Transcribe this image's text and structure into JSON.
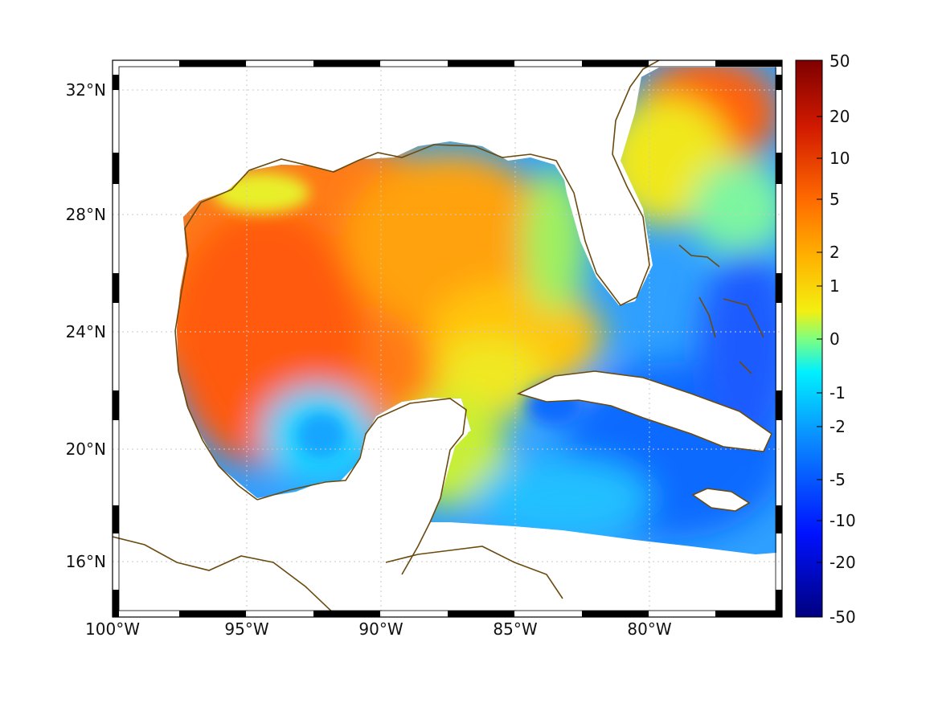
{
  "map": {
    "lon_labels": [
      "100°W",
      "95°W",
      "90°W",
      "85°W",
      "80°W"
    ],
    "lat_labels": [
      "32°N",
      "28°N",
      "24°N",
      "20°N",
      "16°N"
    ],
    "coast_color": "#6b4a0f",
    "grid_style": "dotted",
    "frame": "black-white-checker"
  },
  "colorbar": {
    "labels": [
      "50",
      "20",
      "10",
      "5",
      "2",
      "1",
      "0",
      "-1",
      "-2",
      "-5",
      "-10",
      "-20",
      "-50"
    ],
    "colormap": "jet",
    "scale": "symmetric-log"
  }
}
